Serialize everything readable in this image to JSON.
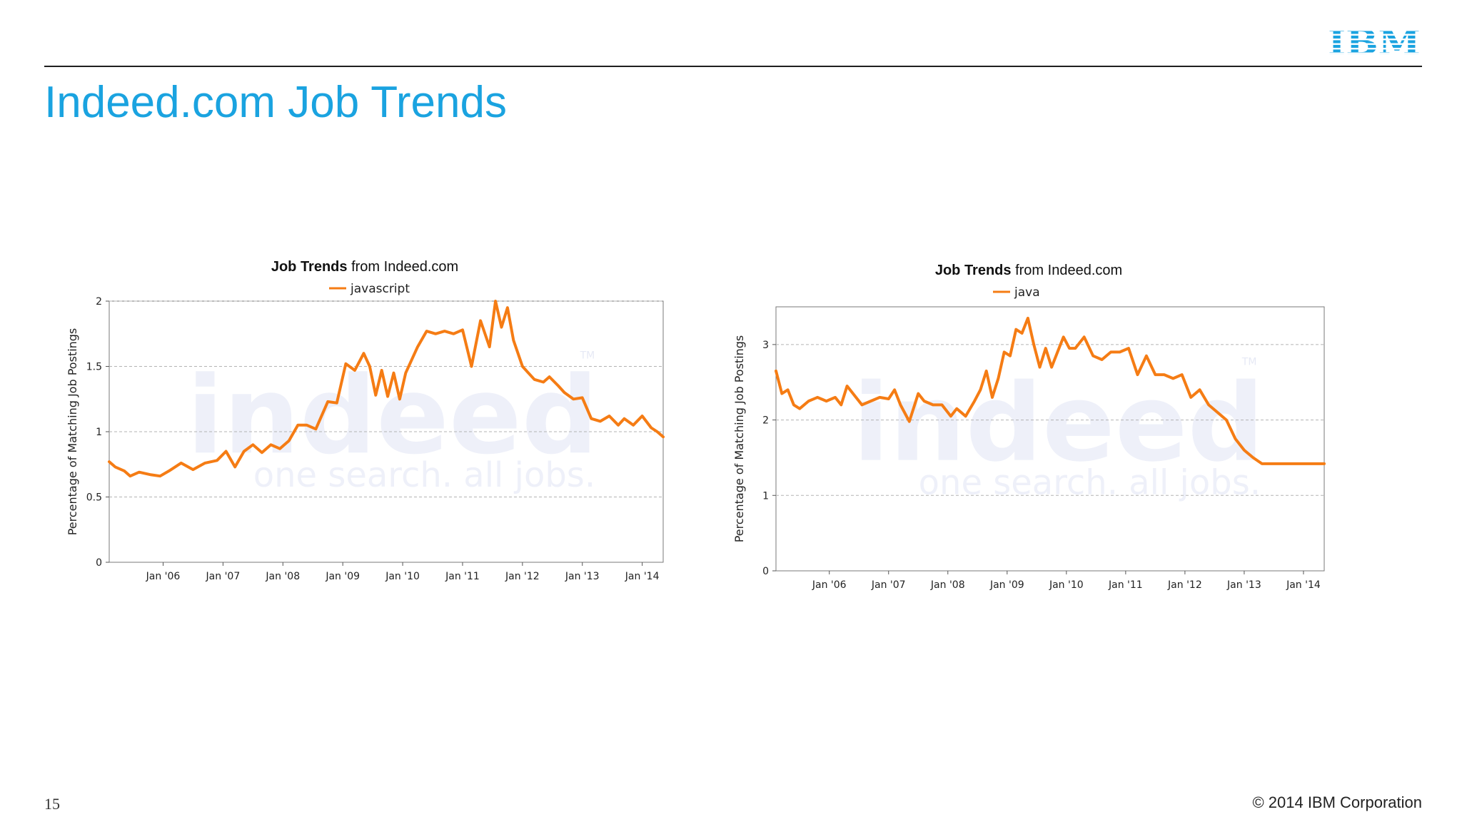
{
  "header": {
    "logo_text": "IBM",
    "title": "Indeed.com Job Trends"
  },
  "footer": {
    "page_number": "15",
    "copyright": "© 2014 IBM Corporation"
  },
  "colors": {
    "title": "#1aa3e0",
    "logo": "#1aa3e0",
    "series": "#f57c14",
    "grid": "#b3b3b3"
  },
  "chart_data": [
    {
      "type": "line",
      "title_bold": "Job Trends",
      "title_rest": " from Indeed.com",
      "ylabel": "Percentage of Matching Job Postings",
      "xlabel": "",
      "xlim": [
        2005.1,
        2014.35
      ],
      "ylim": [
        0,
        2
      ],
      "yticks": [
        0,
        0.5,
        1,
        1.5,
        2
      ],
      "ytick_labels": [
        "0",
        "0.5",
        "1",
        "1.5",
        "2"
      ],
      "xticks": [
        2006,
        2007,
        2008,
        2009,
        2010,
        2011,
        2012,
        2013,
        2014
      ],
      "xtick_labels": [
        "Jan '06",
        "Jan '07",
        "Jan '08",
        "Jan '09",
        "Jan '10",
        "Jan '11",
        "Jan '12",
        "Jan '13",
        "Jan '14"
      ],
      "grid": true,
      "legend": "top-center",
      "watermark_main": "indeed",
      "watermark_sub": "one search. all jobs.",
      "watermark_tm": "TM",
      "series": [
        {
          "name": "javascript",
          "x": [
            2005.1,
            2005.2,
            2005.35,
            2005.45,
            2005.6,
            2005.8,
            2005.95,
            2006.1,
            2006.3,
            2006.5,
            2006.7,
            2006.9,
            2007.05,
            2007.2,
            2007.35,
            2007.5,
            2007.65,
            2007.8,
            2007.95,
            2008.1,
            2008.25,
            2008.4,
            2008.55,
            2008.75,
            2008.9,
            2009.05,
            2009.2,
            2009.35,
            2009.45,
            2009.55,
            2009.65,
            2009.75,
            2009.85,
            2009.95,
            2010.05,
            2010.15,
            2010.25,
            2010.4,
            2010.55,
            2010.7,
            2010.85,
            2011.0,
            2011.15,
            2011.3,
            2011.45,
            2011.55,
            2011.65,
            2011.75,
            2011.85,
            2012.0,
            2012.1,
            2012.2,
            2012.35,
            2012.45,
            2012.6,
            2012.7,
            2012.85,
            2013.0,
            2013.15,
            2013.3,
            2013.45,
            2013.6,
            2013.7,
            2013.85,
            2014.0,
            2014.15,
            2014.25,
            2014.35
          ],
          "values": [
            0.77,
            0.73,
            0.7,
            0.66,
            0.69,
            0.67,
            0.66,
            0.7,
            0.76,
            0.71,
            0.76,
            0.78,
            0.85,
            0.73,
            0.85,
            0.9,
            0.84,
            0.9,
            0.87,
            0.93,
            1.05,
            1.05,
            1.02,
            1.23,
            1.22,
            1.52,
            1.47,
            1.6,
            1.5,
            1.28,
            1.47,
            1.27,
            1.45,
            1.25,
            1.45,
            1.55,
            1.65,
            1.77,
            1.75,
            1.77,
            1.75,
            1.78,
            1.5,
            1.85,
            1.65,
            2.0,
            1.8,
            1.95,
            1.7,
            1.5,
            1.45,
            1.4,
            1.38,
            1.42,
            1.35,
            1.3,
            1.25,
            1.26,
            1.1,
            1.08,
            1.12,
            1.05,
            1.1,
            1.05,
            1.12,
            1.03,
            1.0,
            0.96
          ]
        }
      ]
    },
    {
      "type": "line",
      "title_bold": "Job Trends",
      "title_rest": " from Indeed.com",
      "ylabel": "Percentage of Matching Job Postings",
      "xlabel": "",
      "xlim": [
        2005.1,
        2014.35
      ],
      "ylim": [
        0,
        3.5
      ],
      "yticks": [
        0,
        1,
        2,
        3
      ],
      "ytick_labels": [
        "0",
        "1",
        "2",
        "3"
      ],
      "xticks": [
        2006,
        2007,
        2008,
        2009,
        2010,
        2011,
        2012,
        2013,
        2014
      ],
      "xtick_labels": [
        "Jan '06",
        "Jan '07",
        "Jan '08",
        "Jan '09",
        "Jan '10",
        "Jan '11",
        "Jan '12",
        "Jan '13",
        "Jan '14"
      ],
      "grid": true,
      "legend": "top-center",
      "watermark_main": "indeed",
      "watermark_sub": "one search. all jobs.",
      "watermark_tm": "TM",
      "series": [
        {
          "name": "java",
          "x": [
            2005.1,
            2005.2,
            2005.3,
            2005.4,
            2005.5,
            2005.65,
            2005.8,
            2005.95,
            2006.1,
            2006.2,
            2006.3,
            2006.45,
            2006.55,
            2006.7,
            2006.85,
            2007.0,
            2007.1,
            2007.2,
            2007.35,
            2007.5,
            2007.6,
            2007.75,
            2007.9,
            2008.05,
            2008.15,
            2008.3,
            2008.45,
            2008.55,
            2008.65,
            2008.75,
            2008.85,
            2008.95,
            2009.05,
            2009.15,
            2009.25,
            2009.35,
            2009.45,
            2009.55,
            2009.65,
            2009.75,
            2009.85,
            2009.95,
            2010.05,
            2010.15,
            2010.3,
            2010.45,
            2010.6,
            2010.75,
            2010.9,
            2011.05,
            2011.2,
            2011.35,
            2011.5,
            2011.65,
            2011.8,
            2011.95,
            2012.1,
            2012.25,
            2012.4,
            2012.55,
            2012.7,
            2012.85,
            2013.0,
            2013.15,
            2013.3,
            2013.45,
            2013.6,
            2013.75,
            2013.9,
            2014.05,
            2014.2,
            2014.35
          ],
          "values": [
            2.65,
            2.35,
            2.4,
            2.2,
            2.15,
            2.25,
            2.3,
            2.25,
            2.3,
            2.2,
            2.45,
            2.3,
            2.2,
            2.25,
            2.3,
            2.28,
            2.4,
            2.2,
            1.98,
            2.35,
            2.25,
            2.2,
            2.2,
            2.05,
            2.15,
            2.05,
            2.25,
            2.4,
            2.65,
            2.3,
            2.55,
            2.9,
            2.85,
            3.2,
            3.15,
            3.35,
            3.0,
            2.7,
            2.95,
            2.7,
            2.9,
            3.1,
            2.95,
            2.95,
            3.1,
            2.85,
            2.8,
            2.9,
            2.9,
            2.95,
            2.6,
            2.85,
            2.6,
            2.6,
            2.55,
            2.6,
            2.3,
            2.4,
            2.2,
            2.1,
            2.0,
            1.75,
            1.6,
            1.5,
            1.42,
            1.42,
            1.42,
            1.42,
            1.42,
            1.42,
            1.42,
            1.42
          ]
        }
      ]
    }
  ]
}
